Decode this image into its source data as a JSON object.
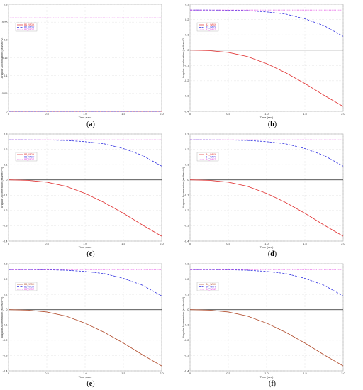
{
  "figure": {
    "panels": [
      {
        "label": "a"
      },
      {
        "label": "b"
      },
      {
        "label": "c"
      },
      {
        "label": "d"
      },
      {
        "label": "e"
      },
      {
        "label": "f"
      }
    ]
  },
  "chart_data": [
    {
      "type": "line",
      "panel": "a",
      "xlabel": "Time (sec)",
      "ylabel": "Angular Acceleration (rad/sec^2)",
      "xlim": [
        0,
        2.0
      ],
      "ylim": [
        0,
        0.3
      ],
      "x_ticks": [
        "0",
        "0.5",
        "1.0",
        "1.5",
        "2.0"
      ],
      "y_ticks": [
        "0",
        "0.05",
        "0.1",
        "0.15",
        "0.2",
        "0.25",
        "0.3"
      ],
      "grid": true,
      "legend_position": "top-left",
      "series": [
        {
          "name": "B1_WDX",
          "color": "#e03030",
          "dash": "solid",
          "x": [
            0,
            0.5,
            1.0,
            1.5,
            2.0
          ],
          "values": [
            0,
            0,
            0,
            0,
            0
          ]
        },
        {
          "name": "B1_WDY",
          "color": "#3030e0",
          "dash": "dashed",
          "x": [
            0,
            0.5,
            1.0,
            1.5,
            2.0
          ],
          "values": [
            0,
            0,
            0,
            0,
            0
          ]
        },
        {
          "name": "B1_WDZ",
          "color": "#e040e0",
          "dash": "dotted",
          "x": [
            0,
            0.5,
            1.0,
            1.5,
            2.0
          ],
          "values": [
            0.262,
            0.262,
            0.262,
            0.262,
            0.262
          ]
        }
      ]
    },
    {
      "type": "line",
      "panel": "b",
      "xlabel": "Time (sec)",
      "ylabel": "Angular Acceleration (rad/sec^2)",
      "xlim": [
        0,
        2.0
      ],
      "ylim": [
        -0.4,
        0.3
      ],
      "x_ticks": [
        "0",
        "0.5",
        "1.0",
        "1.5",
        "2.0"
      ],
      "y_ticks": [
        "-0.4",
        "-0.3",
        "-0.2",
        "-0.1",
        "0",
        "0.1",
        "0.2",
        "0.3"
      ],
      "grid": true,
      "legend_position": "top-left",
      "series": [
        {
          "name": "B2_WDX",
          "color": "#e03030",
          "dash": "solid",
          "x": [
            0,
            0.25,
            0.5,
            0.75,
            1.0,
            1.25,
            1.5,
            1.75,
            2.0
          ],
          "values": [
            0,
            -0.003,
            -0.015,
            -0.042,
            -0.088,
            -0.148,
            -0.218,
            -0.295,
            -0.368
          ]
        },
        {
          "name": "B2_WDY",
          "color": "#3030e0",
          "dash": "dashed",
          "x": [
            0,
            0.25,
            0.5,
            0.75,
            1.0,
            1.25,
            1.5,
            1.75,
            2.0
          ],
          "values": [
            0.262,
            0.262,
            0.261,
            0.258,
            0.25,
            0.236,
            0.205,
            0.16,
            0.09
          ]
        },
        {
          "name": "B2_WDZ",
          "color": "#e040e0",
          "dash": "dotted",
          "x": [
            0,
            0.25,
            0.5,
            0.75,
            1.0,
            1.25,
            1.5,
            1.75,
            2.0
          ],
          "values": [
            0.262,
            0.262,
            0.262,
            0.262,
            0.262,
            0.262,
            0.262,
            0.262,
            0.262
          ]
        }
      ]
    },
    {
      "type": "line",
      "panel": "c",
      "xlabel": "Time (sec)",
      "ylabel": "Angular Acceleration (rad/sec^2)",
      "xlim": [
        0,
        2.0
      ],
      "ylim": [
        -0.4,
        0.3
      ],
      "x_ticks": [
        "0",
        "0.5",
        "1.0",
        "1.5",
        "2.0"
      ],
      "y_ticks": [
        "-0.4",
        "-0.3",
        "-0.2",
        "-0.1",
        "0",
        "0.1",
        "0.2",
        "0.3"
      ],
      "grid": true,
      "legend_position": "top-left",
      "series": [
        {
          "name": "B3_WDX",
          "color": "#e03030",
          "dash": "solid",
          "x": [
            0,
            0.25,
            0.5,
            0.75,
            1.0,
            1.25,
            1.5,
            1.75,
            2.0
          ],
          "values": [
            0,
            -0.003,
            -0.015,
            -0.042,
            -0.088,
            -0.148,
            -0.218,
            -0.295,
            -0.368
          ]
        },
        {
          "name": "B3_WDY",
          "color": "#3030e0",
          "dash": "dashed",
          "x": [
            0,
            0.25,
            0.5,
            0.75,
            1.0,
            1.25,
            1.5,
            1.75,
            2.0
          ],
          "values": [
            0.262,
            0.262,
            0.261,
            0.258,
            0.25,
            0.236,
            0.205,
            0.16,
            0.09
          ]
        },
        {
          "name": "B3_WDZ",
          "color": "#e040e0",
          "dash": "dotted",
          "x": [
            0,
            0.25,
            0.5,
            0.75,
            1.0,
            1.25,
            1.5,
            1.75,
            2.0
          ],
          "values": [
            0.262,
            0.262,
            0.262,
            0.262,
            0.262,
            0.262,
            0.262,
            0.262,
            0.262
          ]
        }
      ]
    },
    {
      "type": "line",
      "panel": "d",
      "xlabel": "Time (sec)",
      "ylabel": "Angular Acceleration (rad/sec^2)",
      "xlim": [
        0,
        2.0
      ],
      "ylim": [
        -0.4,
        0.3
      ],
      "x_ticks": [
        "0",
        "0.5",
        "1.0",
        "1.5",
        "2.0"
      ],
      "y_ticks": [
        "-0.4",
        "-0.3",
        "-0.2",
        "-0.1",
        "0",
        "0.1",
        "0.2",
        "0.3"
      ],
      "grid": true,
      "legend_position": "top-left",
      "series": [
        {
          "name": "B4_WDX",
          "color": "#e03030",
          "dash": "solid",
          "x": [
            0,
            0.25,
            0.5,
            0.75,
            1.0,
            1.25,
            1.5,
            1.75,
            2.0
          ],
          "values": [
            0,
            -0.003,
            -0.015,
            -0.042,
            -0.088,
            -0.148,
            -0.218,
            -0.295,
            -0.368
          ]
        },
        {
          "name": "B4_WDY",
          "color": "#3030e0",
          "dash": "dashed",
          "x": [
            0,
            0.25,
            0.5,
            0.75,
            1.0,
            1.25,
            1.5,
            1.75,
            2.0
          ],
          "values": [
            0.262,
            0.262,
            0.261,
            0.258,
            0.25,
            0.236,
            0.205,
            0.16,
            0.09
          ]
        },
        {
          "name": "B4_WDZ",
          "color": "#e040e0",
          "dash": "dotted",
          "x": [
            0,
            0.25,
            0.5,
            0.75,
            1.0,
            1.25,
            1.5,
            1.75,
            2.0
          ],
          "values": [
            0.262,
            0.262,
            0.262,
            0.262,
            0.262,
            0.262,
            0.262,
            0.262,
            0.262
          ]
        }
      ]
    },
    {
      "type": "line",
      "panel": "e",
      "xlabel": "Time (sec)",
      "ylabel": "Angular Acceleration (rad/sec^2)",
      "xlim": [
        0,
        2.0
      ],
      "ylim": [
        -0.4,
        0.3
      ],
      "x_ticks": [
        "0",
        "0.5",
        "1.0",
        "1.5",
        "2.0"
      ],
      "y_ticks": [
        "-0.4",
        "-0.3",
        "-0.2",
        "-0.1",
        "0",
        "0.1",
        "0.2",
        "0.3"
      ],
      "grid": true,
      "legend_position": "top-left",
      "series": [
        {
          "name": "B5_WDX",
          "color": "#b04a2a",
          "dash": "solid",
          "x": [
            0,
            0.25,
            0.5,
            0.75,
            1.0,
            1.25,
            1.5,
            1.75,
            2.0
          ],
          "values": [
            0,
            -0.003,
            -0.015,
            -0.042,
            -0.088,
            -0.148,
            -0.218,
            -0.295,
            -0.368
          ]
        },
        {
          "name": "B5_WDY",
          "color": "#3030e0",
          "dash": "dashed",
          "x": [
            0,
            0.25,
            0.5,
            0.75,
            1.0,
            1.25,
            1.5,
            1.75,
            2.0
          ],
          "values": [
            0.262,
            0.262,
            0.261,
            0.258,
            0.25,
            0.236,
            0.205,
            0.16,
            0.09
          ]
        },
        {
          "name": "B5_WDZ",
          "color": "#e040e0",
          "dash": "dotted",
          "x": [
            0,
            0.25,
            0.5,
            0.75,
            1.0,
            1.25,
            1.5,
            1.75,
            2.0
          ],
          "values": [
            0.262,
            0.262,
            0.262,
            0.262,
            0.262,
            0.262,
            0.262,
            0.262,
            0.262
          ]
        }
      ]
    },
    {
      "type": "line",
      "panel": "f",
      "xlabel": "Time (sec)",
      "ylabel": "Angular Acceleration (rad/sec^2)",
      "xlim": [
        0,
        2.0
      ],
      "ylim": [
        -0.4,
        0.3
      ],
      "x_ticks": [
        "0",
        "0.5",
        "1.0",
        "1.5",
        "2.0"
      ],
      "y_ticks": [
        "-0.4",
        "-0.3",
        "-0.2",
        "-0.1",
        "0",
        "0.1",
        "0.2",
        "0.3"
      ],
      "grid": true,
      "legend_position": "top-left",
      "series": [
        {
          "name": "B6_WDX",
          "color": "#b04a2a",
          "dash": "solid",
          "x": [
            0,
            0.25,
            0.5,
            0.75,
            1.0,
            1.25,
            1.5,
            1.75,
            2.0
          ],
          "values": [
            0,
            -0.003,
            -0.015,
            -0.042,
            -0.088,
            -0.148,
            -0.218,
            -0.295,
            -0.368
          ]
        },
        {
          "name": "B6_WDY",
          "color": "#3030e0",
          "dash": "dashed",
          "x": [
            0,
            0.25,
            0.5,
            0.75,
            1.0,
            1.25,
            1.5,
            1.75,
            2.0
          ],
          "values": [
            0.262,
            0.262,
            0.261,
            0.258,
            0.25,
            0.236,
            0.205,
            0.16,
            0.09
          ]
        },
        {
          "name": "B6_WDZ",
          "color": "#e040e0",
          "dash": "dotted",
          "x": [
            0,
            0.25,
            0.5,
            0.75,
            1.0,
            1.25,
            1.5,
            1.75,
            2.0
          ],
          "values": [
            0.262,
            0.262,
            0.262,
            0.262,
            0.262,
            0.262,
            0.262,
            0.262,
            0.262
          ]
        }
      ]
    }
  ]
}
